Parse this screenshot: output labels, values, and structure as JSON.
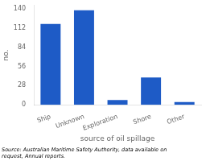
{
  "chart_data": {
    "type": "bar",
    "categories": [
      "Ship",
      "Unknown",
      "Exploration",
      "Shore",
      "Other"
    ],
    "values": [
      118,
      138,
      7,
      40,
      4
    ],
    "color": "#1e5bc6",
    "ylabel": "no.",
    "xlabel": "source of oil spillage",
    "ylim": [
      0,
      145
    ],
    "yticks": [
      0,
      28,
      56,
      84,
      112,
      140
    ],
    "grid": false,
    "footnote": "Source: Australian Maritime Safety Authority, data available on\nrequest, Annual reports."
  }
}
